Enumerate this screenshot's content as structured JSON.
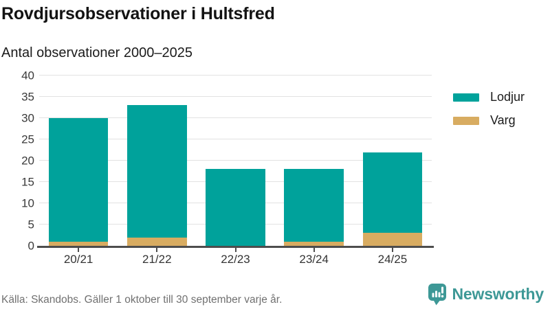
{
  "header": {
    "title": "Rovdjursobservationer i Hultsfred",
    "subtitle": "Antal observationer 2000–2025"
  },
  "chart_data": {
    "type": "bar",
    "stacked": true,
    "title": "Rovdjursobservationer i Hultsfred",
    "subtitle": "Antal observationer 2000–2025",
    "categories": [
      "20/21",
      "21/22",
      "22/23",
      "23/24",
      "24/25"
    ],
    "series": [
      {
        "name": "Lodjur",
        "color": "#00a29b",
        "values": [
          29,
          31,
          18,
          17,
          19
        ]
      },
      {
        "name": "Varg",
        "color": "#d8ac61",
        "values": [
          1,
          2,
          0,
          1,
          3
        ]
      }
    ],
    "totals": [
      30,
      33,
      18,
      18,
      22
    ],
    "xlabel": "",
    "ylabel": "",
    "ylim": [
      0,
      40
    ],
    "yticks": [
      0,
      5,
      10,
      15,
      20,
      25,
      30,
      35,
      40
    ],
    "grid": true,
    "legend_position": "right"
  },
  "footer": {
    "source": "Källa: Skandobs. Gäller 1 oktober till 30 september varje år.",
    "brand": "Newsworthy"
  },
  "colors": {
    "lodjur": "#00a29b",
    "varg": "#d8ac61",
    "brand_teal": "#3d9896",
    "gridline": "#e2e2e2",
    "axis": "#4d4d4d"
  }
}
